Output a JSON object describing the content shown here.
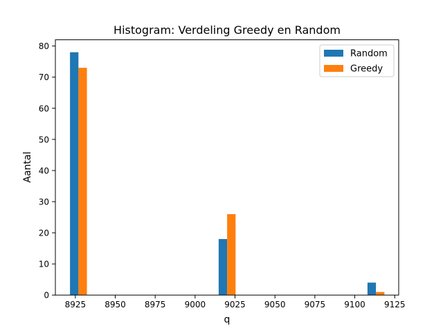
{
  "chart_data": {
    "type": "bar",
    "title": "Histogram: Verdeling Greedy en Random",
    "xlabel": "q",
    "ylabel": "Aantal",
    "xlim": [
      8912.5,
      9127.5
    ],
    "ylim": [
      0,
      82
    ],
    "xticks": [
      8925,
      8950,
      8975,
      9000,
      9025,
      9050,
      9075,
      9100,
      9125
    ],
    "yticks": [
      0,
      10,
      20,
      30,
      40,
      50,
      60,
      70,
      80
    ],
    "grid": false,
    "legend_position": "top-right",
    "bar_width": 5.3,
    "series": [
      {
        "name": "Random",
        "color": "#1f77b4",
        "x": [
          8924.3,
          9017.4,
          9110.6
        ],
        "values": [
          78,
          18,
          4
        ]
      },
      {
        "name": "Greedy",
        "color": "#ff7f0e",
        "x": [
          8929.6,
          9022.7,
          9115.9
        ],
        "values": [
          73,
          26,
          1
        ]
      }
    ]
  }
}
